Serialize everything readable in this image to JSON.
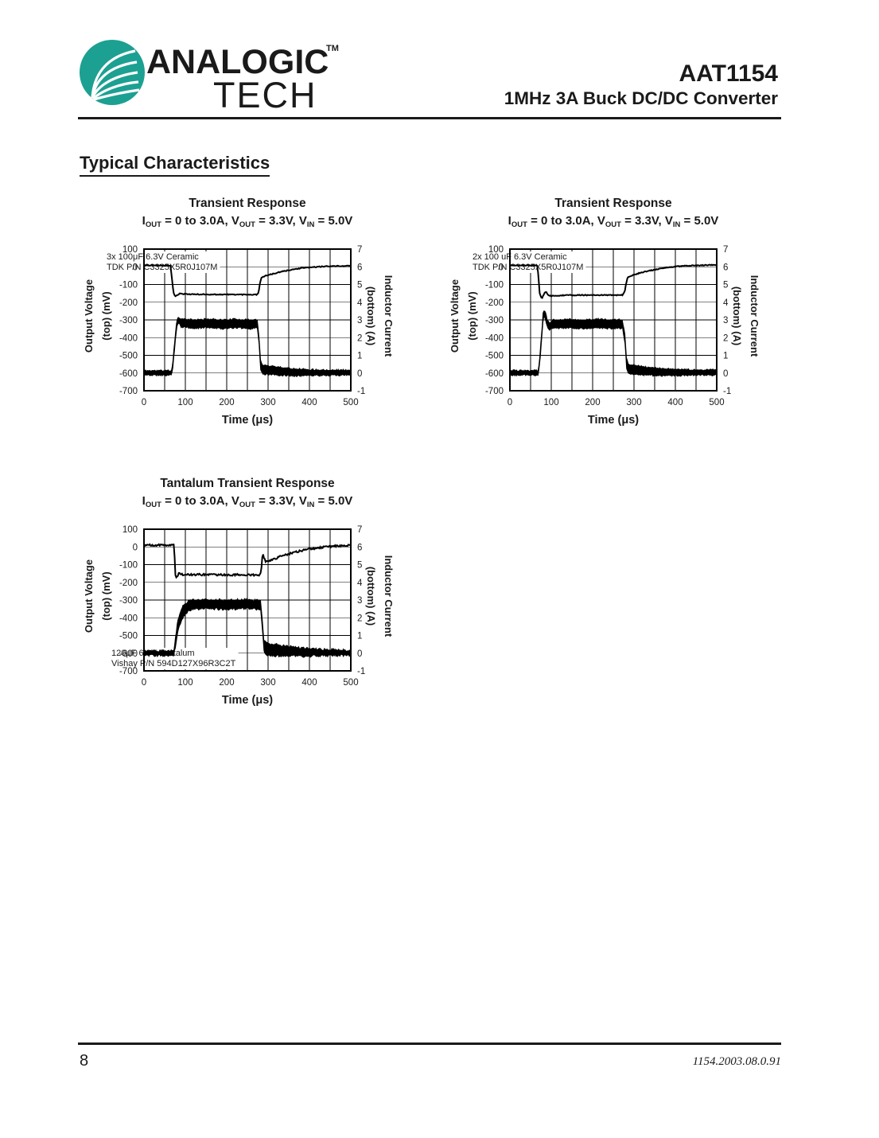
{
  "header": {
    "brand_line1": "ANALOGIC",
    "brand_tm": "TM",
    "brand_line2": "TECH",
    "logo_color": "#1CA092",
    "part_number": "AAT1154",
    "part_description": "1MHz 3A Buck DC/DC Converter"
  },
  "section_title": "Typical Characteristics",
  "footer": {
    "page_number": "8",
    "doc_code": "1154.2003.08.0.91"
  },
  "chart_data": [
    {
      "type": "line",
      "title": "Transient Response",
      "subtitle_parts": [
        [
          "I",
          "OUT"
        ],
        [
          " = 0 to 3.0A, V",
          "OUT"
        ],
        [
          " = 3.3V, V",
          "IN"
        ],
        [
          " = 5.0V",
          ""
        ]
      ],
      "x_axis": {
        "label": "Time (μs)",
        "range": [
          0,
          500
        ],
        "ticks": [
          0,
          100,
          200,
          300,
          400,
          500
        ],
        "minor_grid_step": 50
      },
      "y_left": {
        "label_line1": "Output Voltage",
        "label_line2": "(top)  (mV)",
        "range": [
          100,
          -700
        ],
        "ticks": [
          100,
          0,
          -100,
          -200,
          -300,
          -400,
          -500,
          -600,
          -700
        ]
      },
      "y_right": {
        "label_line1": "Inductor Current",
        "label_line2": "(bottom) (A)",
        "range": [
          7,
          -1
        ],
        "ticks": [
          7,
          6,
          5,
          4,
          3,
          2,
          1,
          0,
          -1
        ]
      },
      "grid": true,
      "note_line1": "3x 100μF 6.3V Ceramic",
      "note_line2": "TDK P/N C3325X5R0J107M",
      "note_position": "top",
      "noise": {
        "voltage_mV": 2.5,
        "current_A": 0.05
      },
      "series": [
        {
          "name": "output_voltage_mV",
          "points": [
            [
              0,
              8
            ],
            [
              64,
              8
            ],
            [
              67,
              -50
            ],
            [
              71,
              -145
            ],
            [
              75,
              -168
            ],
            [
              81,
              -160
            ],
            [
              87,
              -148
            ],
            [
              95,
              -154
            ],
            [
              140,
              -156
            ],
            [
              272,
              -157
            ],
            [
              277,
              -145
            ],
            [
              280,
              -100
            ],
            [
              284,
              -60
            ],
            [
              295,
              -50
            ],
            [
              312,
              -40
            ],
            [
              332,
              -28
            ],
            [
              355,
              -17
            ],
            [
              380,
              -8
            ],
            [
              408,
              -2
            ],
            [
              445,
              3
            ],
            [
              500,
              5
            ]
          ]
        },
        {
          "name": "inductor_current_band_A",
          "envelope": [
            [
              0,
              -0.12,
              0.14
            ],
            [
              66,
              -0.12,
              0.14
            ],
            [
              69,
              0.1,
              0.5
            ],
            [
              74,
              1.3,
              1.8
            ],
            [
              79,
              2.5,
              2.95
            ],
            [
              83,
              2.85,
              3.18
            ],
            [
              90,
              2.6,
              3.06
            ],
            [
              120,
              2.52,
              3.0
            ],
            [
              155,
              2.58,
              3.06
            ],
            [
              190,
              2.5,
              3.0
            ],
            [
              225,
              2.56,
              3.05
            ],
            [
              258,
              2.5,
              3.0
            ],
            [
              274,
              2.55,
              3.02
            ],
            [
              278,
              1.6,
              2.1
            ],
            [
              282,
              0.2,
              0.7
            ],
            [
              286,
              -0.05,
              0.45
            ],
            [
              305,
              -0.1,
              0.42
            ],
            [
              330,
              -0.13,
              0.33
            ],
            [
              360,
              -0.15,
              0.26
            ],
            [
              400,
              -0.15,
              0.2
            ],
            [
              450,
              -0.13,
              0.18
            ],
            [
              500,
              -0.12,
              0.17
            ]
          ]
        }
      ]
    },
    {
      "type": "line",
      "title": "Transient Response",
      "subtitle_parts": [
        [
          "I",
          "OUT"
        ],
        [
          " = 0 to 3.0A, V",
          "OUT"
        ],
        [
          " = 3.3V, V",
          "IN"
        ],
        [
          " = 5.0V",
          ""
        ]
      ],
      "x_axis": {
        "label": "Time (μs)",
        "range": [
          0,
          500
        ],
        "ticks": [
          0,
          100,
          200,
          300,
          400,
          500
        ],
        "minor_grid_step": 50
      },
      "y_left": {
        "label_line1": "Output Voltage",
        "label_line2": "(top)  (mV)",
        "range": [
          100,
          -700
        ],
        "ticks": [
          100,
          0,
          -100,
          -200,
          -300,
          -400,
          -500,
          -600,
          -700
        ]
      },
      "y_right": {
        "label_line1": "Inductor Current",
        "label_line2": "(bottom) (A)",
        "range": [
          7,
          -1
        ],
        "ticks": [
          7,
          6,
          5,
          4,
          3,
          2,
          1,
          0,
          -1
        ]
      },
      "grid": true,
      "note_line1": "2x 100 uF 6.3V Ceramic",
      "note_line2": "TDK P/N C3325X5R0J107M",
      "note_position": "top",
      "noise": {
        "voltage_mV": 2.5,
        "current_A": 0.05
      },
      "series": [
        {
          "name": "output_voltage_mV",
          "points": [
            [
              0,
              8
            ],
            [
              66,
              8
            ],
            [
              69,
              -55
            ],
            [
              72,
              -150
            ],
            [
              77,
              -178
            ],
            [
              83,
              -152
            ],
            [
              87,
              -140
            ],
            [
              93,
              -160
            ],
            [
              100,
              -165
            ],
            [
              140,
              -160
            ],
            [
              272,
              -160
            ],
            [
              277,
              -145
            ],
            [
              281,
              -95
            ],
            [
              285,
              -58
            ],
            [
              298,
              -46
            ],
            [
              318,
              -32
            ],
            [
              342,
              -20
            ],
            [
              368,
              -8
            ],
            [
              395,
              0
            ],
            [
              430,
              6
            ],
            [
              470,
              9
            ],
            [
              500,
              10
            ]
          ]
        },
        {
          "name": "inductor_current_band_A",
          "envelope": [
            [
              0,
              -0.12,
              0.14
            ],
            [
              68,
              -0.12,
              0.14
            ],
            [
              71,
              0.2,
              0.6
            ],
            [
              76,
              1.6,
              2.1
            ],
            [
              80,
              2.9,
              3.35
            ],
            [
              83,
              3.25,
              3.62
            ],
            [
              87,
              2.9,
              3.35
            ],
            [
              91,
              2.5,
              2.95
            ],
            [
              96,
              2.42,
              2.85
            ],
            [
              104,
              2.52,
              3.0
            ],
            [
              140,
              2.55,
              3.03
            ],
            [
              175,
              2.5,
              3.0
            ],
            [
              210,
              2.56,
              3.05
            ],
            [
              245,
              2.5,
              3.0
            ],
            [
              272,
              2.55,
              3.02
            ],
            [
              278,
              1.7,
              2.2
            ],
            [
              282,
              0.3,
              0.85
            ],
            [
              287,
              -0.05,
              0.5
            ],
            [
              308,
              -0.1,
              0.42
            ],
            [
              335,
              -0.13,
              0.32
            ],
            [
              370,
              -0.15,
              0.26
            ],
            [
              415,
              -0.14,
              0.2
            ],
            [
              460,
              -0.12,
              0.18
            ],
            [
              500,
              -0.12,
              0.17
            ]
          ]
        }
      ]
    },
    {
      "type": "line",
      "title": "Tantalum Transient Response",
      "subtitle_parts": [
        [
          "I",
          "OUT"
        ],
        [
          " = 0 to 3.0A, V",
          "OUT"
        ],
        [
          " = 3.3V, V",
          "IN"
        ],
        [
          " = 5.0V",
          ""
        ]
      ],
      "x_axis": {
        "label": "Time (μs)",
        "range": [
          0,
          500
        ],
        "ticks": [
          0,
          100,
          200,
          300,
          400,
          500
        ],
        "minor_grid_step": 50
      },
      "y_left": {
        "label_line1": "Output Voltage",
        "label_line2": "(top)  (mV)",
        "range": [
          100,
          -700
        ],
        "ticks": [
          100,
          0,
          -100,
          -200,
          -300,
          -400,
          -500,
          -600,
          -700
        ]
      },
      "y_right": {
        "label_line1": "Inductor Current",
        "label_line2": "(bottom) (A)",
        "range": [
          7,
          -1
        ],
        "ticks": [
          7,
          6,
          5,
          4,
          3,
          2,
          1,
          0,
          -1
        ]
      },
      "grid": true,
      "note_line1": "120μF 6.3V Tantalum",
      "note_line2": "Vishay P/N 594D127X96R3C2T",
      "note_position": "bottom",
      "noise": {
        "voltage_mV": 5,
        "current_A": 0.07
      },
      "series": [
        {
          "name": "output_voltage_mV",
          "points": [
            [
              0,
              10
            ],
            [
              72,
              10
            ],
            [
              74,
              -60
            ],
            [
              76,
              -158
            ],
            [
              79,
              -174
            ],
            [
              84,
              -150
            ],
            [
              92,
              -156
            ],
            [
              150,
              -157
            ],
            [
              281,
              -158
            ],
            [
              284,
              -120
            ],
            [
              287,
              -35
            ],
            [
              290,
              -60
            ],
            [
              294,
              -85
            ],
            [
              302,
              -80
            ],
            [
              315,
              -68
            ],
            [
              332,
              -52
            ],
            [
              352,
              -38
            ],
            [
              375,
              -24
            ],
            [
              400,
              -12
            ],
            [
              428,
              -3
            ],
            [
              460,
              5
            ],
            [
              500,
              9
            ]
          ]
        },
        {
          "name": "inductor_current_band_A",
          "envelope": [
            [
              0,
              -0.13,
              0.14
            ],
            [
              72,
              -0.13,
              0.14
            ],
            [
              76,
              0.3,
              0.9
            ],
            [
              82,
              1.2,
              1.9
            ],
            [
              90,
              1.8,
              2.5
            ],
            [
              98,
              2.15,
              2.8
            ],
            [
              108,
              2.4,
              2.95
            ],
            [
              120,
              2.5,
              3.0
            ],
            [
              160,
              2.52,
              3.03
            ],
            [
              200,
              2.46,
              3.0
            ],
            [
              240,
              2.52,
              3.03
            ],
            [
              270,
              2.48,
              3.0
            ],
            [
              282,
              2.5,
              3.0
            ],
            [
              286,
              1.4,
              1.9
            ],
            [
              290,
              0.1,
              0.7
            ],
            [
              296,
              -0.12,
              0.55
            ],
            [
              315,
              -0.15,
              0.5
            ],
            [
              345,
              -0.16,
              0.4
            ],
            [
              380,
              -0.18,
              0.3
            ],
            [
              425,
              -0.15,
              0.23
            ],
            [
              470,
              -0.13,
              0.19
            ],
            [
              500,
              -0.13,
              0.18
            ]
          ]
        }
      ]
    }
  ]
}
